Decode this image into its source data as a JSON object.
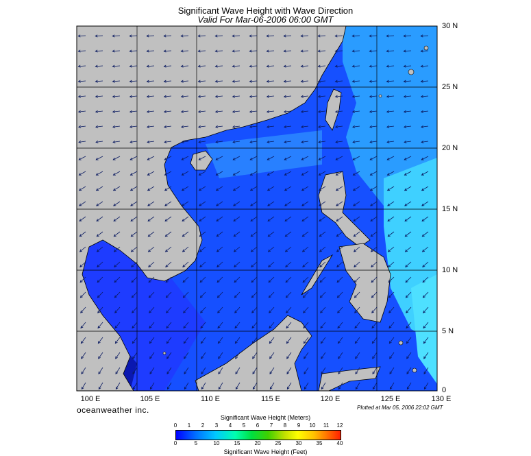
{
  "title": "Significant Wave Height with Wave Direction",
  "subtitle": "Valid For Mar-06-2006 06:00 GMT",
  "lat_labels": [
    "30 N",
    "25 N",
    "20 N",
    "15 N",
    "10 N",
    "5 N",
    "0"
  ],
  "lon_labels": [
    "100 E",
    "105 E",
    "110 E",
    "115 E",
    "120 E",
    "125 E",
    "130 E"
  ],
  "brand": "oceanweather inc.",
  "plotted": "Plotted at Mar 05, 2006 22:02 GMT",
  "colorbar": {
    "title_meters": "Significant Wave Height (Meters)",
    "title_feet": "Significant Wave Height (Feet)",
    "meters_ticks": [
      "0",
      "1",
      "2",
      "3",
      "4",
      "5",
      "6",
      "7",
      "8",
      "9",
      "10",
      "11",
      "12"
    ],
    "feet_ticks": [
      "0",
      "5",
      "10",
      "15",
      "20",
      "25",
      "30",
      "35",
      "40"
    ]
  },
  "colors": {
    "land": "#c0c0c0",
    "deep_blue": "#0000ff",
    "mid_blue": "#1e6bff",
    "light_cyan": "#33ccff",
    "grid": "#000000"
  },
  "icons": [
    "wave-direction-arrow-icon"
  ]
}
